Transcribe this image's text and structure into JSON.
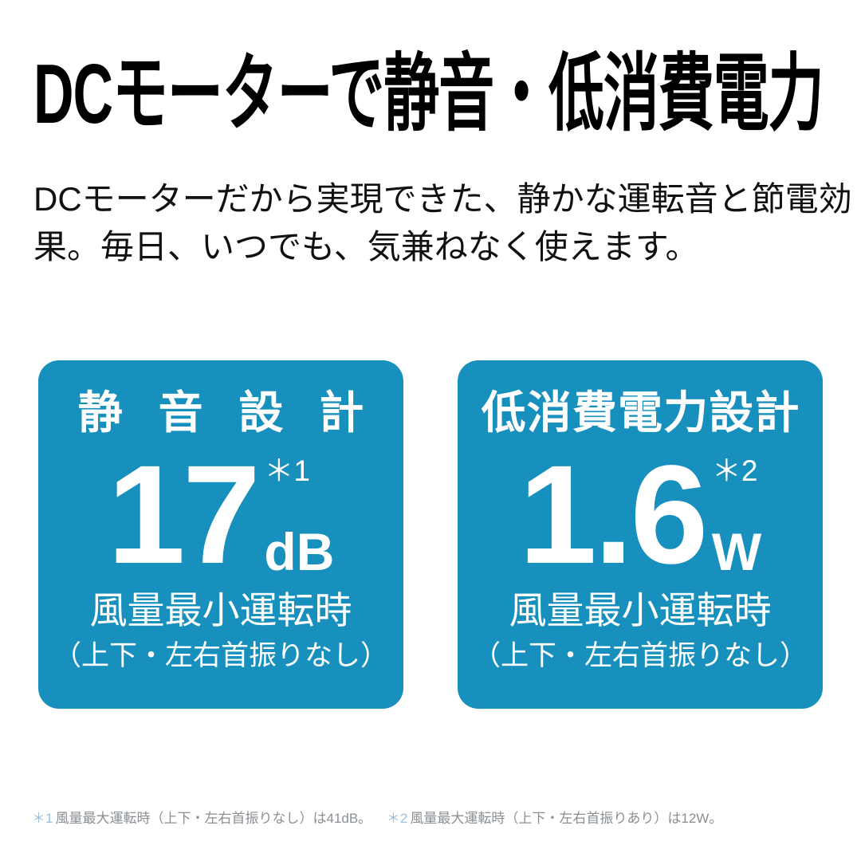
{
  "colors": {
    "accent_teal": "#1790BD",
    "card_text": "#ffffff",
    "heading_text": "#000000",
    "body_text": "#111111",
    "footnote_text": "#8a8f94",
    "footnote_mark": "#9bbfd8",
    "background": "#ffffff"
  },
  "header": {
    "title": "DCモーターで静音・低消費電力",
    "description_lines": [
      "DCモーターだから実現できた、静かな運転音と節電効",
      "果。毎日、いつでも、気兼ねなく使えます。"
    ]
  },
  "cards": [
    {
      "title": "静音設計",
      "value": "17",
      "unit": "dB",
      "ref": "＊1",
      "condition_line1": "風量最小運転時",
      "condition_line2": "（上下・左右首振りなし）"
    },
    {
      "title": "低消費電力設計",
      "value": "1.6",
      "unit": "W",
      "ref": "＊2",
      "condition_line1": "風量最小運転時",
      "condition_line2": "（上下・左右首振りなし）"
    }
  ],
  "footnotes": [
    {
      "mark": "＊1",
      "text": "風量最大運転時（上下・左右首振りなし）は41dB。"
    },
    {
      "mark": "＊2",
      "text": "風量最大運転時（上下・左右首振りあり）は12W。"
    }
  ]
}
